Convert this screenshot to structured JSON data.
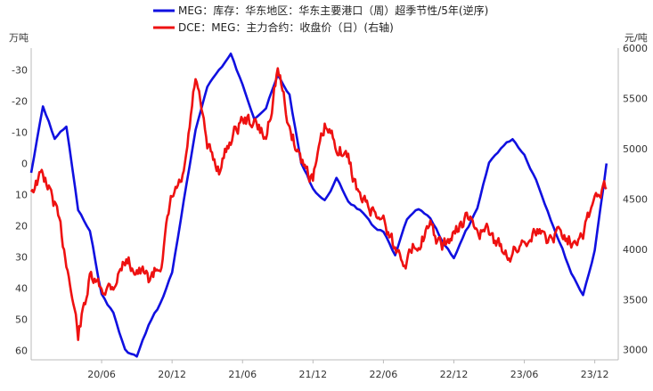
{
  "chart_data": {
    "type": "line",
    "title": "",
    "left_axis": {
      "unit": "万吨",
      "inverted": true,
      "ylim": [
        -37,
        63
      ],
      "ticks": [
        "-30",
        "-20",
        "-10",
        "0",
        "10",
        "20",
        "30",
        "40",
        "50",
        "60"
      ]
    },
    "right_axis": {
      "unit": "元/吨",
      "ylim": [
        2900,
        6000
      ],
      "ticks": [
        "3000",
        "3500",
        "4000",
        "4500",
        "5000",
        "5500",
        "6000"
      ]
    },
    "x_axis": {
      "ticks": [
        "20/06",
        "20/12",
        "21/06",
        "21/12",
        "22/06",
        "22/12",
        "23/06",
        "23/12"
      ],
      "xlim": [
        "2019-12",
        "2024-02"
      ]
    },
    "grid": false,
    "legend_position": "top-center",
    "series": [
      {
        "name": "MEG：库存：华东地区：华东主要港口（周）超季节性/5年(逆序)",
        "axis": "left",
        "color": "#1010e0",
        "points": [
          [
            "2019-12",
            3
          ],
          [
            "2020-01",
            -18
          ],
          [
            "2020-02",
            -8
          ],
          [
            "2020-03",
            -12
          ],
          [
            "2020-04",
            15
          ],
          [
            "2020-05",
            22
          ],
          [
            "2020-06",
            42
          ],
          [
            "2020-07",
            48
          ],
          [
            "2020-08",
            60
          ],
          [
            "2020-09",
            62
          ],
          [
            "2020-10",
            52
          ],
          [
            "2020-11",
            45
          ],
          [
            "2020-12",
            35
          ],
          [
            "2021-01",
            12
          ],
          [
            "2021-02",
            -10
          ],
          [
            "2021-03",
            -25
          ],
          [
            "2021-04",
            -30
          ],
          [
            "2021-05",
            -35
          ],
          [
            "2021-06",
            -25
          ],
          [
            "2021-07",
            -15
          ],
          [
            "2021-08",
            -18
          ],
          [
            "2021-09",
            -28
          ],
          [
            "2021-10",
            -22
          ],
          [
            "2021-11",
            0
          ],
          [
            "2021-12",
            8
          ],
          [
            "2022-01",
            12
          ],
          [
            "2022-02",
            5
          ],
          [
            "2022-03",
            12
          ],
          [
            "2022-04",
            15
          ],
          [
            "2022-05",
            20
          ],
          [
            "2022-06",
            22
          ],
          [
            "2022-07",
            30
          ],
          [
            "2022-08",
            18
          ],
          [
            "2022-09",
            15
          ],
          [
            "2022-10",
            18
          ],
          [
            "2022-11",
            25
          ],
          [
            "2022-12",
            30
          ],
          [
            "2023-01",
            22
          ],
          [
            "2023-02",
            15
          ],
          [
            "2023-03",
            0
          ],
          [
            "2023-04",
            -5
          ],
          [
            "2023-05",
            -8
          ],
          [
            "2023-06",
            -3
          ],
          [
            "2023-07",
            5
          ],
          [
            "2023-08",
            15
          ],
          [
            "2023-09",
            25
          ],
          [
            "2023-10",
            35
          ],
          [
            "2023-11",
            42
          ],
          [
            "2023-12",
            28
          ],
          [
            "2024-01",
            0
          ]
        ]
      },
      {
        "name": "DCE：MEG：主力合约：收盘价（日）(右轴)",
        "axis": "right",
        "color": "#ee1111",
        "points": [
          [
            "2019-12",
            4600
          ],
          [
            "2020-01",
            4750
          ],
          [
            "2020-02",
            4450
          ],
          [
            "2020-03",
            3900
          ],
          [
            "2020-04",
            3150
          ],
          [
            "2020-05",
            3700
          ],
          [
            "2020-06",
            3600
          ],
          [
            "2020-07",
            3650
          ],
          [
            "2020-08",
            3900
          ],
          [
            "2020-09",
            3800
          ],
          [
            "2020-10",
            3700
          ],
          [
            "2020-11",
            3850
          ],
          [
            "2020-12",
            4500
          ],
          [
            "2021-01",
            4700
          ],
          [
            "2021-02",
            5700
          ],
          [
            "2021-03",
            5000
          ],
          [
            "2021-04",
            4800
          ],
          [
            "2021-05",
            5100
          ],
          [
            "2021-06",
            5300
          ],
          [
            "2021-07",
            5250
          ],
          [
            "2021-08",
            5100
          ],
          [
            "2021-09",
            5800
          ],
          [
            "2021-10",
            5200
          ],
          [
            "2021-11",
            4900
          ],
          [
            "2021-12",
            4700
          ],
          [
            "2022-01",
            5200
          ],
          [
            "2022-02",
            5050
          ],
          [
            "2022-03",
            4900
          ],
          [
            "2022-04",
            4500
          ],
          [
            "2022-05",
            4400
          ],
          [
            "2022-06",
            4300
          ],
          [
            "2022-07",
            4000
          ],
          [
            "2022-08",
            3900
          ],
          [
            "2022-09",
            4100
          ],
          [
            "2022-10",
            4200
          ],
          [
            "2022-11",
            4000
          ],
          [
            "2022-12",
            4150
          ],
          [
            "2023-01",
            4300
          ],
          [
            "2023-02",
            4200
          ],
          [
            "2023-03",
            4150
          ],
          [
            "2023-04",
            4000
          ],
          [
            "2023-05",
            3950
          ],
          [
            "2023-06",
            4100
          ],
          [
            "2023-07",
            4200
          ],
          [
            "2023-08",
            4100
          ],
          [
            "2023-09",
            4200
          ],
          [
            "2023-10",
            4100
          ],
          [
            "2023-11",
            4200
          ],
          [
            "2023-12",
            4500
          ],
          [
            "2024-01",
            4600
          ]
        ]
      }
    ]
  }
}
